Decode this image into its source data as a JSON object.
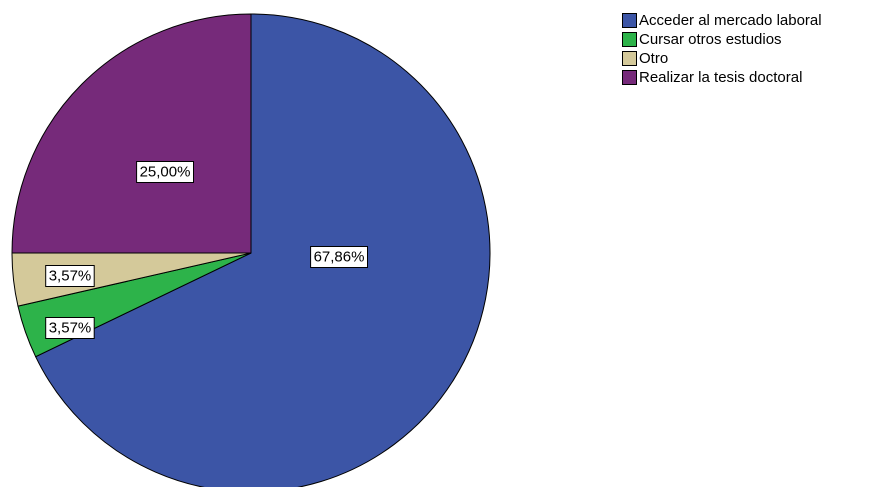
{
  "chart_data": {
    "type": "pie",
    "categories": [
      "Acceder al mercado laboral",
      "Cursar otros estudios",
      "Otro",
      "Realizar la tesis doctoral"
    ],
    "values": [
      67.86,
      3.57,
      3.57,
      25.0
    ],
    "labels": [
      "67,86%",
      "3,57%",
      "3,57%",
      "25,00%"
    ],
    "colors": [
      "#3c55a6",
      "#2db34a",
      "#d4c99a",
      "#762a7a"
    ],
    "start_angle_deg": 0,
    "direction": "clockwise",
    "legend_position": "top-right"
  }
}
